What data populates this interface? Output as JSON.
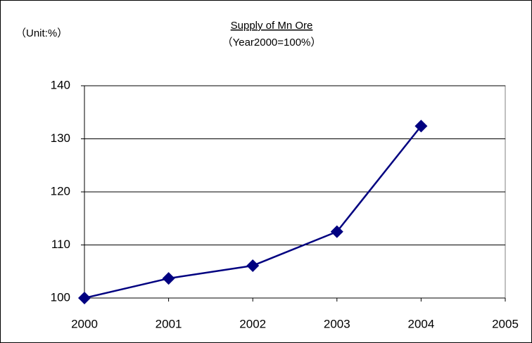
{
  "chart_data": {
    "type": "line",
    "title": "Supply of Mn Ore",
    "subtitle": "（Year2000=100%）",
    "unit_label": "（Unit:%）",
    "x": [
      2000,
      2001,
      2002,
      2003,
      2004
    ],
    "series": [
      {
        "name": "Supply of Mn Ore",
        "color": "#000080",
        "values": [
          100,
          103.7,
          106.1,
          112.5,
          132.4
        ]
      }
    ],
    "xlim": [
      2000,
      2005
    ],
    "xticks": [
      2000,
      2001,
      2002,
      2003,
      2004,
      2005
    ],
    "ylim": [
      100,
      140
    ],
    "yticks": [
      100,
      110,
      120,
      130,
      140
    ],
    "grid": true
  }
}
